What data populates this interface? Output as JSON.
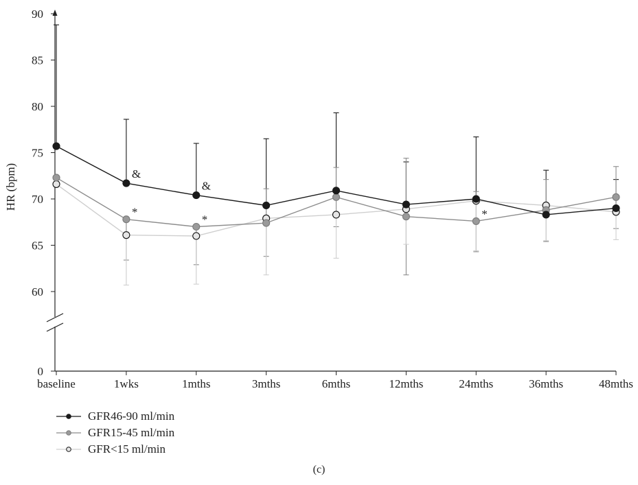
{
  "chart_data": {
    "type": "line",
    "categories": [
      "baseline",
      "1wks",
      "1mths",
      "3mths",
      "6mths",
      "12mths",
      "24mths",
      "36mths",
      "48mths"
    ],
    "ylabel": "HR (bpm)",
    "yticks": [
      "0",
      "60",
      "65",
      "70",
      "75",
      "80",
      "85",
      "90"
    ],
    "ylim": [
      60,
      90
    ],
    "axis_break": true,
    "series": [
      {
        "name": "GFR46-90 ml/min",
        "color": "#1a1a1a",
        "marker_fill": "#1a1a1a",
        "marker_stroke": "#1a1a1a",
        "values": [
          75.7,
          71.7,
          70.4,
          69.3,
          70.9,
          69.4,
          70.0,
          68.3,
          69.0
        ],
        "err_upper": [
          88.8,
          78.6,
          76.0,
          76.5,
          79.3,
          74.0,
          76.7,
          73.1,
          72.1
        ]
      },
      {
        "name": "GFR15-45 ml/min",
        "color": "#8c8c8c",
        "marker_fill": "#9a9a9a",
        "marker_stroke": "#7a7a7a",
        "values": [
          72.3,
          67.8,
          67.0,
          67.4,
          70.2,
          68.1,
          67.6,
          68.8,
          70.2
        ],
        "err_upper": [
          null,
          null,
          null,
          71.1,
          73.4,
          74.4,
          70.8,
          72.1,
          73.5
        ],
        "err_lower": [
          null,
          63.4,
          62.9,
          63.8,
          67.0,
          61.8,
          64.3,
          65.4,
          66.8
        ]
      },
      {
        "name": "GFR<15 ml/min",
        "color": "#cfcfcf",
        "marker_fill": "#e6e6e6",
        "marker_stroke": "#111111",
        "values": [
          71.6,
          66.1,
          66.0,
          67.9,
          68.3,
          68.9,
          69.8,
          69.3,
          68.6
        ],
        "err_upper": [
          null,
          null,
          null,
          null,
          null,
          null,
          null,
          null,
          null
        ],
        "err_lower": [
          null,
          60.7,
          60.8,
          61.8,
          63.6,
          65.1,
          64.4,
          65.5,
          65.6
        ]
      }
    ],
    "annotations": [
      {
        "text": "&",
        "series": 0,
        "index": 1
      },
      {
        "text": "&",
        "series": 0,
        "index": 2
      },
      {
        "text": "*",
        "series": 1,
        "index": 1
      },
      {
        "text": "*",
        "series": 1,
        "index": 2
      },
      {
        "text": "*",
        "series": 1,
        "index": 6
      }
    ],
    "legend_position": "bottom-left",
    "panel_label": "(c)"
  }
}
